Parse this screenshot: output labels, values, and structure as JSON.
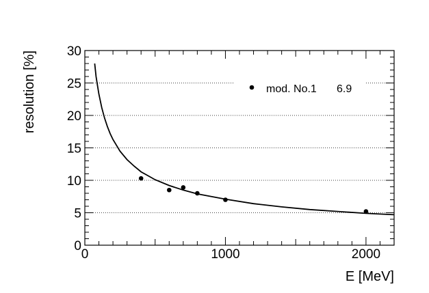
{
  "chart_data": {
    "type": "scatter",
    "xlabel": "E [MeV]",
    "ylabel": "resolution [%]",
    "xlim": [
      0,
      2200
    ],
    "ylim": [
      0,
      30
    ],
    "x_ticks": [
      0,
      1000,
      2000
    ],
    "x_tick_labels": [
      "0",
      "1000",
      "2000"
    ],
    "y_ticks": [
      0,
      5,
      10,
      15,
      20,
      25,
      30
    ],
    "y_tick_labels": [
      "0",
      "5",
      "10",
      "15",
      "20",
      "25",
      "30"
    ],
    "grid": "horizontal-dotted",
    "legend_position": "top-right",
    "series": [
      {
        "name": "mod. No.1",
        "kind": "markers",
        "x": [
          400,
          600,
          700,
          800,
          1000,
          2000
        ],
        "y": [
          10.3,
          8.5,
          8.9,
          8.0,
          7.0,
          5.2
        ]
      }
    ],
    "fit_curve": {
      "kind": "line",
      "x": [
        70,
        80,
        90,
        100,
        120,
        140,
        160,
        180,
        200,
        250,
        300,
        350,
        400,
        450,
        500,
        600,
        700,
        800,
        900,
        1000,
        1200,
        1400,
        1600,
        1800,
        2000,
        2200
      ],
      "y": [
        28.0,
        26.0,
        24.6,
        23.3,
        21.2,
        19.6,
        18.3,
        17.2,
        16.3,
        14.5,
        13.2,
        12.2,
        11.3,
        10.7,
        10.1,
        9.2,
        8.5,
        7.9,
        7.5,
        7.1,
        6.4,
        5.9,
        5.5,
        5.2,
        4.9,
        4.7
      ]
    },
    "legend": {
      "label": "mod. No.1",
      "value": "6.9"
    }
  }
}
